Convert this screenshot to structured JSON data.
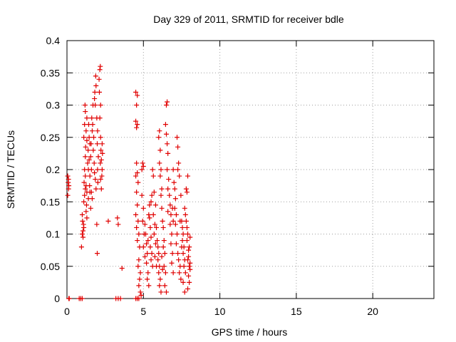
{
  "chart_data": {
    "type": "scatter",
    "title": "Day 329 of 2011, SRMTID for receiver bdle",
    "xlabel": "GPS time / hours",
    "ylabel": "SRMTID / TECUs",
    "xlim": [
      0,
      24
    ],
    "ylim": [
      0,
      0.4
    ],
    "xticks": [
      0,
      5,
      10,
      15,
      20
    ],
    "xtick_labels": [
      "0",
      "5",
      "10",
      "15",
      "20"
    ],
    "yticks": [
      0,
      0.05,
      0.1,
      0.15,
      0.2,
      0.25,
      0.3,
      0.35,
      0.4
    ],
    "ytick_labels": [
      "0",
      "0.05",
      "0.1",
      "0.15",
      "0.2",
      "0.25",
      "0.3",
      "0.35",
      "0.4"
    ],
    "grid": true,
    "marker": "plus",
    "color": "#e00000",
    "series": [
      {
        "name": "SRMTID",
        "points": [
          [
            0.05,
            0.19
          ],
          [
            0.08,
            0.18
          ],
          [
            0.1,
            0.17
          ],
          [
            0.05,
            0.16
          ],
          [
            0.12,
            0.175
          ],
          [
            0.1,
            0.185
          ],
          [
            0.15,
            0.0
          ],
          [
            0.12,
            0.0
          ],
          [
            0.8,
            0.0
          ],
          [
            0.9,
            0.0
          ],
          [
            1.0,
            0.0
          ],
          [
            0.95,
            0.08
          ],
          [
            1.0,
            0.1
          ],
          [
            1.02,
            0.12
          ],
          [
            1.05,
            0.105
          ],
          [
            1.0,
            0.13
          ],
          [
            1.08,
            0.115
          ],
          [
            1.05,
            0.095
          ],
          [
            1.1,
            0.11
          ],
          [
            1.1,
            0.15
          ],
          [
            1.15,
            0.16
          ],
          [
            1.12,
            0.18
          ],
          [
            1.2,
            0.17
          ],
          [
            1.15,
            0.2
          ],
          [
            1.2,
            0.19
          ],
          [
            1.25,
            0.175
          ],
          [
            1.3,
            0.165
          ],
          [
            1.28,
            0.145
          ],
          [
            1.1,
            0.25
          ],
          [
            1.15,
            0.27
          ],
          [
            1.2,
            0.29
          ],
          [
            1.18,
            0.3
          ],
          [
            1.25,
            0.26
          ],
          [
            1.3,
            0.28
          ],
          [
            1.2,
            0.22
          ],
          [
            1.22,
            0.235
          ],
          [
            1.3,
            0.245
          ],
          [
            1.35,
            0.21
          ],
          [
            1.4,
            0.2
          ],
          [
            1.38,
            0.23
          ],
          [
            1.45,
            0.25
          ],
          [
            1.42,
            0.27
          ],
          [
            1.5,
            0.24
          ],
          [
            1.45,
            0.215
          ],
          [
            1.5,
            0.19
          ],
          [
            1.48,
            0.175
          ],
          [
            1.55,
            0.22
          ],
          [
            1.6,
            0.2
          ],
          [
            1.58,
            0.24
          ],
          [
            1.65,
            0.26
          ],
          [
            1.62,
            0.28
          ],
          [
            1.7,
            0.3
          ],
          [
            1.68,
            0.27
          ],
          [
            1.75,
            0.25
          ],
          [
            1.72,
            0.23
          ],
          [
            1.8,
            0.31
          ],
          [
            1.82,
            0.32
          ],
          [
            1.85,
            0.3
          ],
          [
            1.9,
            0.33
          ],
          [
            1.88,
            0.345
          ],
          [
            1.78,
            0.21
          ],
          [
            1.8,
            0.195
          ],
          [
            1.85,
            0.185
          ],
          [
            1.9,
            0.17
          ],
          [
            1.95,
            0.28
          ],
          [
            2.0,
            0.26
          ],
          [
            1.98,
            0.24
          ],
          [
            2.05,
            0.22
          ],
          [
            2.0,
            0.2
          ],
          [
            2.02,
            0.18
          ],
          [
            1.95,
            0.115
          ],
          [
            1.98,
            0.07
          ],
          [
            2.1,
            0.34
          ],
          [
            2.15,
            0.355
          ],
          [
            2.18,
            0.36
          ],
          [
            2.12,
            0.32
          ],
          [
            2.2,
            0.3
          ],
          [
            2.15,
            0.28
          ],
          [
            2.2,
            0.25
          ],
          [
            2.22,
            0.23
          ],
          [
            2.18,
            0.21
          ],
          [
            2.25,
            0.215
          ],
          [
            2.3,
            0.2
          ],
          [
            2.28,
            0.19
          ],
          [
            2.32,
            0.225
          ],
          [
            2.3,
            0.24
          ],
          [
            2.25,
            0.17
          ],
          [
            2.2,
            0.185
          ],
          [
            1.6,
            0.165
          ],
          [
            1.65,
            0.155
          ],
          [
            1.55,
            0.14
          ],
          [
            1.3,
            0.125
          ],
          [
            1.25,
            0.135
          ],
          [
            1.4,
            0.155
          ],
          [
            1.5,
            0.165
          ],
          [
            2.7,
            0.12
          ],
          [
            3.3,
            0.125
          ],
          [
            3.35,
            0.115
          ],
          [
            3.6,
            0.047
          ],
          [
            3.2,
            0.0
          ],
          [
            3.35,
            0.0
          ],
          [
            3.5,
            0.0
          ],
          [
            4.5,
            0.0
          ],
          [
            4.6,
            0.0
          ],
          [
            4.7,
            0.0
          ],
          [
            4.5,
            0.32
          ],
          [
            4.55,
            0.3
          ],
          [
            4.6,
            0.315
          ],
          [
            4.5,
            0.275
          ],
          [
            4.55,
            0.265
          ],
          [
            4.6,
            0.27
          ],
          [
            4.55,
            0.21
          ],
          [
            4.6,
            0.195
          ],
          [
            4.5,
            0.19
          ],
          [
            4.65,
            0.18
          ],
          [
            4.55,
            0.165
          ],
          [
            4.6,
            0.145
          ],
          [
            4.5,
            0.13
          ],
          [
            4.65,
            0.12
          ],
          [
            4.55,
            0.11
          ],
          [
            4.7,
            0.1
          ],
          [
            4.6,
            0.09
          ],
          [
            4.75,
            0.08
          ],
          [
            4.7,
            0.06
          ],
          [
            4.65,
            0.05
          ],
          [
            4.8,
            0.04
          ],
          [
            4.75,
            0.03
          ],
          [
            4.7,
            0.02
          ],
          [
            4.8,
            0.01
          ],
          [
            4.85,
            0.005
          ],
          [
            4.9,
            0.2
          ],
          [
            4.95,
            0.21
          ],
          [
            5.0,
            0.205
          ],
          [
            4.9,
            0.16
          ],
          [
            5.0,
            0.14
          ],
          [
            4.95,
            0.12
          ],
          [
            5.05,
            0.1
          ],
          [
            5.0,
            0.08
          ],
          [
            5.1,
            0.065
          ],
          [
            5.1,
            0.115
          ],
          [
            5.15,
            0.1
          ],
          [
            5.2,
            0.085
          ],
          [
            5.25,
            0.07
          ],
          [
            5.2,
            0.055
          ],
          [
            5.3,
            0.04
          ],
          [
            5.25,
            0.03
          ],
          [
            5.35,
            0.02
          ],
          [
            5.3,
            0.09
          ],
          [
            5.4,
            0.125
          ],
          [
            5.45,
            0.11
          ],
          [
            5.5,
            0.095
          ],
          [
            5.45,
            0.08
          ],
          [
            5.55,
            0.07
          ],
          [
            5.5,
            0.06
          ],
          [
            5.6,
            0.05
          ],
          [
            5.55,
            0.16
          ],
          [
            5.5,
            0.15
          ],
          [
            5.6,
            0.2
          ],
          [
            5.65,
            0.19
          ],
          [
            5.7,
            0.165
          ],
          [
            5.65,
            0.13
          ],
          [
            5.75,
            0.115
          ],
          [
            5.7,
            0.1
          ],
          [
            5.8,
            0.085
          ],
          [
            5.75,
            0.065
          ],
          [
            5.85,
            0.05
          ],
          [
            5.9,
            0.09
          ],
          [
            5.95,
            0.08
          ],
          [
            6.0,
            0.07
          ],
          [
            5.95,
            0.06
          ],
          [
            6.05,
            0.05
          ],
          [
            6.0,
            0.04
          ],
          [
            6.1,
            0.03
          ],
          [
            6.05,
            0.02
          ],
          [
            6.15,
            0.01
          ],
          [
            6.0,
            0.25
          ],
          [
            6.05,
            0.26
          ],
          [
            6.1,
            0.23
          ],
          [
            6.05,
            0.21
          ],
          [
            6.15,
            0.2
          ],
          [
            6.1,
            0.19
          ],
          [
            6.2,
            0.17
          ],
          [
            6.15,
            0.16
          ],
          [
            6.2,
            0.14
          ],
          [
            6.25,
            0.12
          ],
          [
            6.3,
            0.11
          ],
          [
            6.35,
            0.09
          ],
          [
            6.3,
            0.08
          ],
          [
            6.4,
            0.07
          ],
          [
            6.35,
            0.05
          ],
          [
            6.45,
            0.04
          ],
          [
            6.4,
            0.02
          ],
          [
            6.5,
            0.01
          ],
          [
            6.5,
            0.3
          ],
          [
            6.55,
            0.305
          ],
          [
            6.45,
            0.27
          ],
          [
            6.5,
            0.255
          ],
          [
            6.55,
            0.24
          ],
          [
            6.6,
            0.225
          ],
          [
            6.55,
            0.2
          ],
          [
            6.65,
            0.185
          ],
          [
            6.6,
            0.17
          ],
          [
            6.7,
            0.16
          ],
          [
            6.75,
            0.145
          ],
          [
            6.8,
            0.13
          ],
          [
            6.75,
            0.115
          ],
          [
            6.85,
            0.1
          ],
          [
            6.8,
            0.085
          ],
          [
            6.9,
            0.07
          ],
          [
            6.85,
            0.055
          ],
          [
            6.95,
            0.04
          ],
          [
            7.0,
            0.18
          ],
          [
            7.05,
            0.17
          ],
          [
            7.1,
            0.155
          ],
          [
            7.05,
            0.14
          ],
          [
            7.15,
            0.13
          ],
          [
            7.1,
            0.115
          ],
          [
            7.2,
            0.1
          ],
          [
            7.15,
            0.085
          ],
          [
            7.25,
            0.07
          ],
          [
            7.2,
            0.25
          ],
          [
            7.25,
            0.235
          ],
          [
            7.3,
            0.21
          ],
          [
            7.25,
            0.2
          ],
          [
            7.35,
            0.19
          ],
          [
            7.3,
            0.06
          ],
          [
            7.4,
            0.05
          ],
          [
            7.35,
            0.04
          ],
          [
            7.45,
            0.03
          ],
          [
            7.5,
            0.12
          ],
          [
            7.55,
            0.11
          ],
          [
            7.6,
            0.1
          ],
          [
            7.55,
            0.09
          ],
          [
            7.65,
            0.08
          ],
          [
            7.6,
            0.07
          ],
          [
            7.7,
            0.06
          ],
          [
            7.65,
            0.05
          ],
          [
            7.75,
            0.04
          ],
          [
            7.8,
            0.17
          ],
          [
            7.85,
            0.165
          ],
          [
            7.9,
            0.19
          ],
          [
            7.8,
            0.12
          ],
          [
            7.85,
            0.11
          ],
          [
            7.9,
            0.1
          ],
          [
            7.85,
            0.09
          ],
          [
            7.95,
            0.075
          ],
          [
            7.9,
            0.06
          ],
          [
            8.0,
            0.05
          ],
          [
            8.05,
            0.045
          ],
          [
            7.95,
            0.035
          ],
          [
            8.0,
            0.025
          ],
          [
            7.9,
            0.015
          ],
          [
            8.05,
            0.055
          ],
          [
            7.95,
            0.065
          ],
          [
            8.0,
            0.08
          ],
          [
            8.05,
            0.095
          ],
          [
            7.7,
            0.14
          ],
          [
            7.75,
            0.13
          ],
          [
            7.4,
            0.12
          ],
          [
            7.45,
            0.16
          ],
          [
            6.9,
            0.14
          ],
          [
            6.95,
            0.12
          ],
          [
            6.2,
            0.065
          ],
          [
            6.25,
            0.045
          ],
          [
            5.8,
            0.145
          ],
          [
            5.35,
            0.13
          ],
          [
            5.4,
            0.145
          ],
          [
            5.85,
            0.11
          ],
          [
            6.95,
            0.2
          ],
          [
            6.6,
            0.135
          ],
          [
            7.5,
            0.08
          ],
          [
            7.6,
            0.025
          ],
          [
            7.7,
            0.01
          ]
        ]
      }
    ]
  }
}
